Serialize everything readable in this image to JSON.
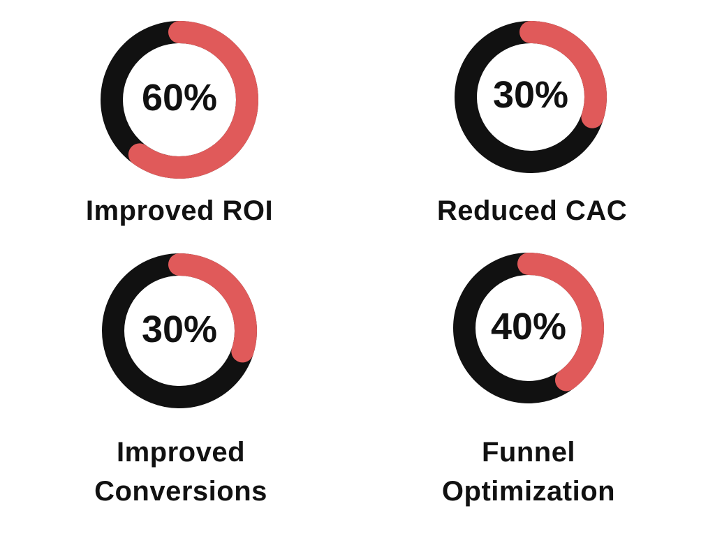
{
  "colors": {
    "track": "#111111",
    "accent": "#e05a5a",
    "text": "#111111",
    "background": "#ffffff"
  },
  "chart_data": {
    "type": "donut",
    "metrics": [
      {
        "label": "Improved ROI",
        "value": 60,
        "display": "60%"
      },
      {
        "label": "Reduced CAC",
        "value": 30,
        "display": "30%"
      },
      {
        "label": "Improved Conversions",
        "value": 30,
        "display": "30%"
      },
      {
        "label": "Funnel Optimization",
        "value": 40,
        "display": "40%"
      }
    ]
  }
}
